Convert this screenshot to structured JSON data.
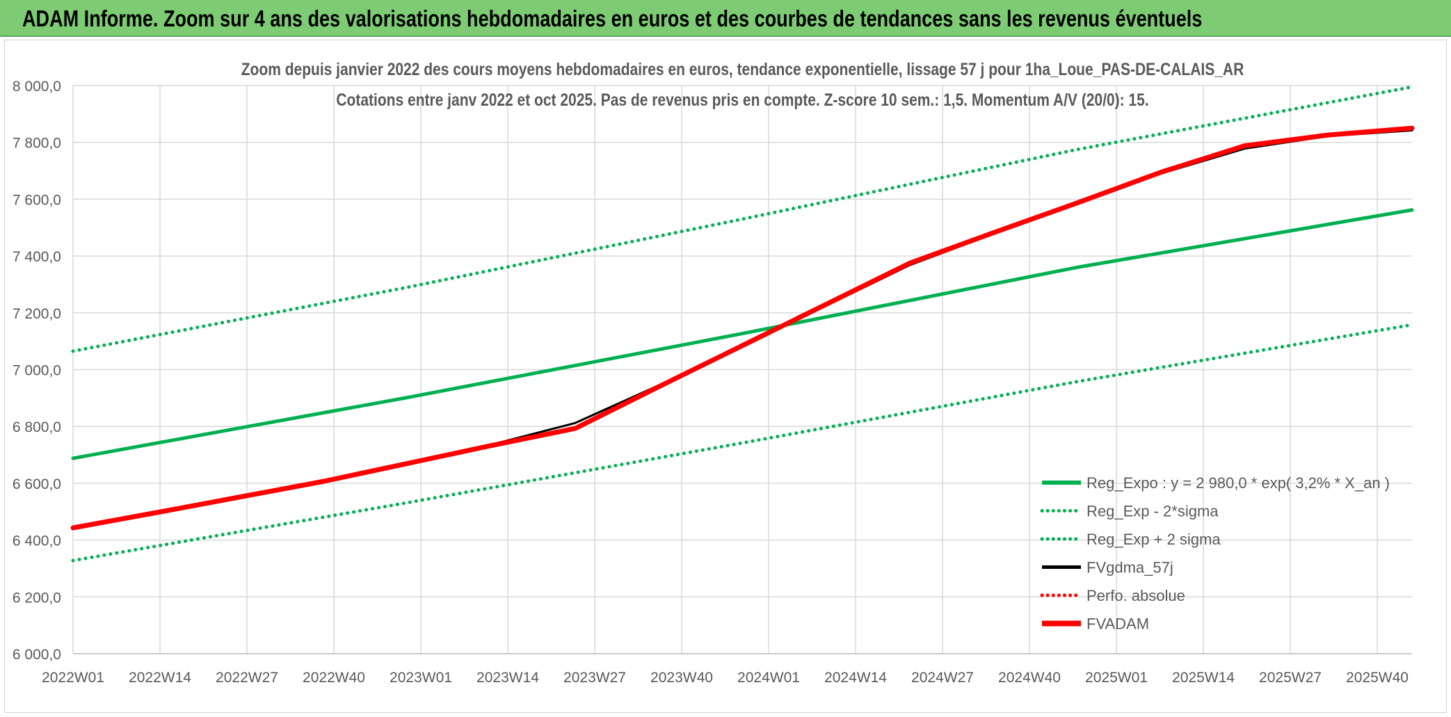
{
  "banner": {
    "title": "ADAM Informe. Zoom sur 4 ans des valorisations hebdomadaires en euros et des courbes de tendances sans les revenus éventuels"
  },
  "chart_data": {
    "type": "line",
    "title_line1": "Zoom depuis janvier 2022 des cours moyens hebdomadaires en euros, tendance exponentielle, lissage 57 j pour 1ha_Loue_PAS-DE-CALAIS_AR",
    "title_line2": "Cotations entre janv 2022 et oct 2025. Pas de revenus pris en compte. Z-score 10 sem.: 1,5. Momentum A/V (20/0): 15.",
    "xlabel": "",
    "ylabel": "",
    "ylim": [
      6000,
      8000
    ],
    "yticks": [
      "8 000,0",
      "7 800,0",
      "7 600,0",
      "7 400,0",
      "7 200,0",
      "7 000,0",
      "6 800,0",
      "6 600,0",
      "6 400,0",
      "6 200,0",
      "6 000,0"
    ],
    "ytick_values": [
      8000,
      7800,
      7600,
      7400,
      7200,
      7000,
      6800,
      6600,
      6400,
      6200,
      6000
    ],
    "xticks": [
      "2022W01",
      "2022W14",
      "2022W27",
      "2022W40",
      "2023W01",
      "2023W14",
      "2023W27",
      "2023W40",
      "2024W01",
      "2024W14",
      "2024W27",
      "2024W40",
      "2025W01",
      "2025W14",
      "2025W27",
      "2025W40"
    ],
    "x_range_weeks": [
      0,
      208
    ],
    "grid": true,
    "legend_position": "bottom-right",
    "series": [
      {
        "name": "Reg_Expo : y = 2 980,0 * exp( 3,2% *  X_an )",
        "color": "#00b050",
        "style": "solid",
        "width": 5,
        "points": [
          [
            0,
            6688
          ],
          [
            52,
            6902
          ],
          [
            104,
            7127
          ],
          [
            156,
            7360
          ],
          [
            208,
            7562
          ]
        ]
      },
      {
        "name": "Reg_Exp - 2*sigma",
        "color": "#00b050",
        "style": "dotted",
        "width": 4,
        "points": [
          [
            0,
            6328
          ],
          [
            52,
            6532
          ],
          [
            104,
            6742
          ],
          [
            156,
            6958
          ],
          [
            208,
            7158
          ]
        ]
      },
      {
        "name": "Reg_Exp + 2 sigma",
        "color": "#00b050",
        "style": "dotted",
        "width": 4,
        "points": [
          [
            0,
            7065
          ],
          [
            52,
            7290
          ],
          [
            104,
            7530
          ],
          [
            156,
            7775
          ],
          [
            208,
            7995
          ]
        ]
      },
      {
        "name": "FVgdma_57j",
        "color": "#000000",
        "style": "solid",
        "width": 3,
        "points": [
          [
            0,
            6443
          ],
          [
            13,
            6497
          ],
          [
            26,
            6552
          ],
          [
            39,
            6607
          ],
          [
            52,
            6670
          ],
          [
            65,
            6736
          ],
          [
            78,
            6812
          ],
          [
            91,
            6945
          ],
          [
            104,
            7085
          ],
          [
            117,
            7225
          ],
          [
            130,
            7368
          ],
          [
            143,
            7478
          ],
          [
            156,
            7585
          ],
          [
            169,
            7690
          ],
          [
            182,
            7778
          ],
          [
            195,
            7822
          ],
          [
            208,
            7842
          ]
        ]
      },
      {
        "name": "Perfo. absolue",
        "color": "#ff0000",
        "style": "dotted",
        "width": 3,
        "points": []
      },
      {
        "name": "FVADAM",
        "color": "#ff0000",
        "style": "solid",
        "width": 7,
        "points": [
          [
            0,
            6443
          ],
          [
            13,
            6497
          ],
          [
            26,
            6552
          ],
          [
            39,
            6607
          ],
          [
            52,
            6670
          ],
          [
            65,
            6733
          ],
          [
            78,
            6793
          ],
          [
            91,
            6940
          ],
          [
            104,
            7085
          ],
          [
            117,
            7230
          ],
          [
            130,
            7375
          ],
          [
            143,
            7482
          ],
          [
            156,
            7587
          ],
          [
            169,
            7695
          ],
          [
            182,
            7788
          ],
          [
            195,
            7826
          ],
          [
            208,
            7850
          ]
        ]
      }
    ]
  }
}
